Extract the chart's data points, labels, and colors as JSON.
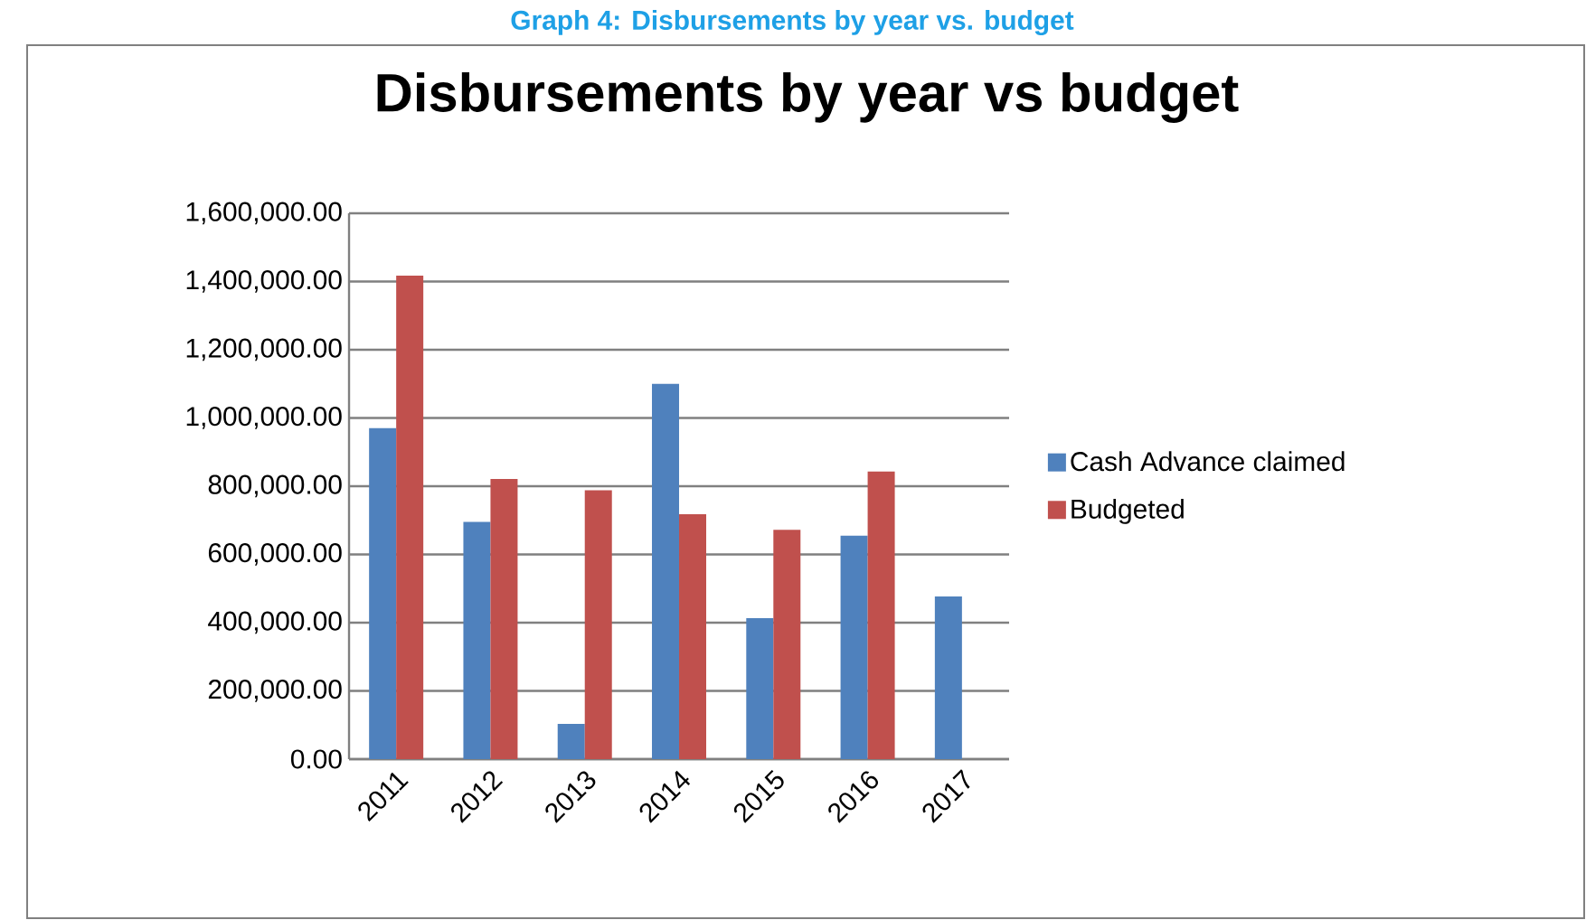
{
  "chart_data": {
    "type": "bar",
    "title": "Disbursements by year vs budget",
    "annotations": [
      "Graph 4: Disbursements by year vs. budget"
    ],
    "categories": [
      "2011",
      "2012",
      "2013",
      "2014",
      "2015",
      "2016",
      "2017"
    ],
    "series": [
      {
        "name": "Cash Advance claimed",
        "color": "#4f81bd",
        "values": [
          970000,
          695000,
          103000,
          1100000,
          413000,
          655000,
          477000
        ]
      },
      {
        "name": "Budgeted",
        "color": "#c0504d",
        "values": [
          1417000,
          821000,
          788000,
          718000,
          672000,
          843000,
          null
        ]
      }
    ],
    "ylim": [
      0,
      1600000
    ],
    "yticks": [
      {
        "value": 0,
        "label": "0.00"
      },
      {
        "value": 200000,
        "label": "200,000.00"
      },
      {
        "value": 400000,
        "label": "400,000.00"
      },
      {
        "value": 600000,
        "label": "600,000.00"
      },
      {
        "value": 800000,
        "label": "800,000.00"
      },
      {
        "value": 1000000,
        "label": "1,000,000.00"
      },
      {
        "value": 1200000,
        "label": "1,200,000.00"
      },
      {
        "value": 1400000,
        "label": "1,400,000.00"
      },
      {
        "value": 1600000,
        "label": "1,600,000.00"
      }
    ],
    "grid": "y",
    "legend": "right"
  }
}
